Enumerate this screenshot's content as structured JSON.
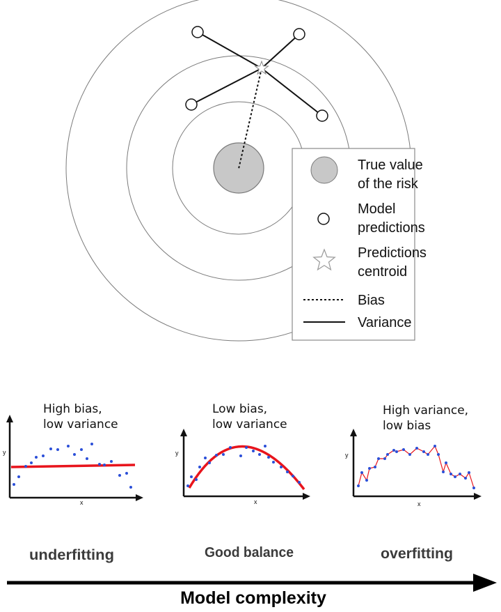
{
  "target_legend": {
    "true_value": [
      "True value",
      "of the risk"
    ],
    "model_predictions": [
      "Model",
      "predictions"
    ],
    "centroid": [
      "Predictions",
      "centroid"
    ],
    "bias": "Bias",
    "variance": "Variance"
  },
  "panels": [
    {
      "caption_1": "High bias,",
      "caption_2": "low variance",
      "xlabel": "x",
      "ylabel": "y",
      "label": "underfitting"
    },
    {
      "caption_1": "Low bias,",
      "caption_2": "low variance",
      "xlabel": "x",
      "ylabel": "y",
      "label": "Good balance"
    },
    {
      "caption_1": "High variance,",
      "caption_2": "low bias",
      "xlabel": "x",
      "ylabel": "y",
      "label": "overfitting"
    }
  ],
  "axis_title": "Model complexity",
  "colors": {
    "fit_line": "#e8141c",
    "points": "#2b4fd8",
    "true_value_fill": "#c8c8c8",
    "ring_stroke": "#7a7a7a"
  }
}
